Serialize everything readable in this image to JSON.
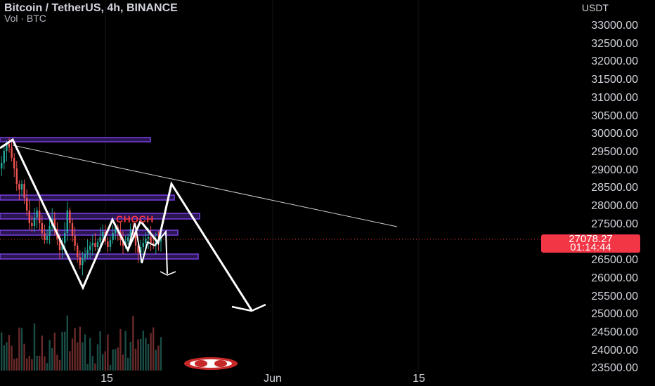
{
  "header": {
    "symbol_line": "Bitcoin / TetherUS, 4h, BINANCE",
    "volume_line": "Vol · BTC"
  },
  "price_axis": {
    "currency": "USDT",
    "labels": [
      "33000.00",
      "32500.00",
      "32000.00",
      "31500.00",
      "31000.00",
      "30500.00",
      "30000.00",
      "29500.00",
      "29000.00",
      "28500.00",
      "28000.00",
      "27500.00",
      "27000.00",
      "26500.00",
      "26000.00",
      "25500.00",
      "25000.00",
      "24500.00",
      "24000.00",
      "23500.00"
    ]
  },
  "time_axis": {
    "labels": [
      "15",
      "Jun",
      "15"
    ]
  },
  "last_price": {
    "price": "27078.27",
    "countdown": "01:14:44"
  },
  "annotations": {
    "choch": "CHOCH"
  },
  "colors": {
    "up": "#26a69a",
    "down": "#ef5350",
    "zone_border": "#7b3fe4",
    "zone_fill": "#2a1650",
    "price_tag": "#f23645",
    "drawing": "#ffffff"
  }
}
